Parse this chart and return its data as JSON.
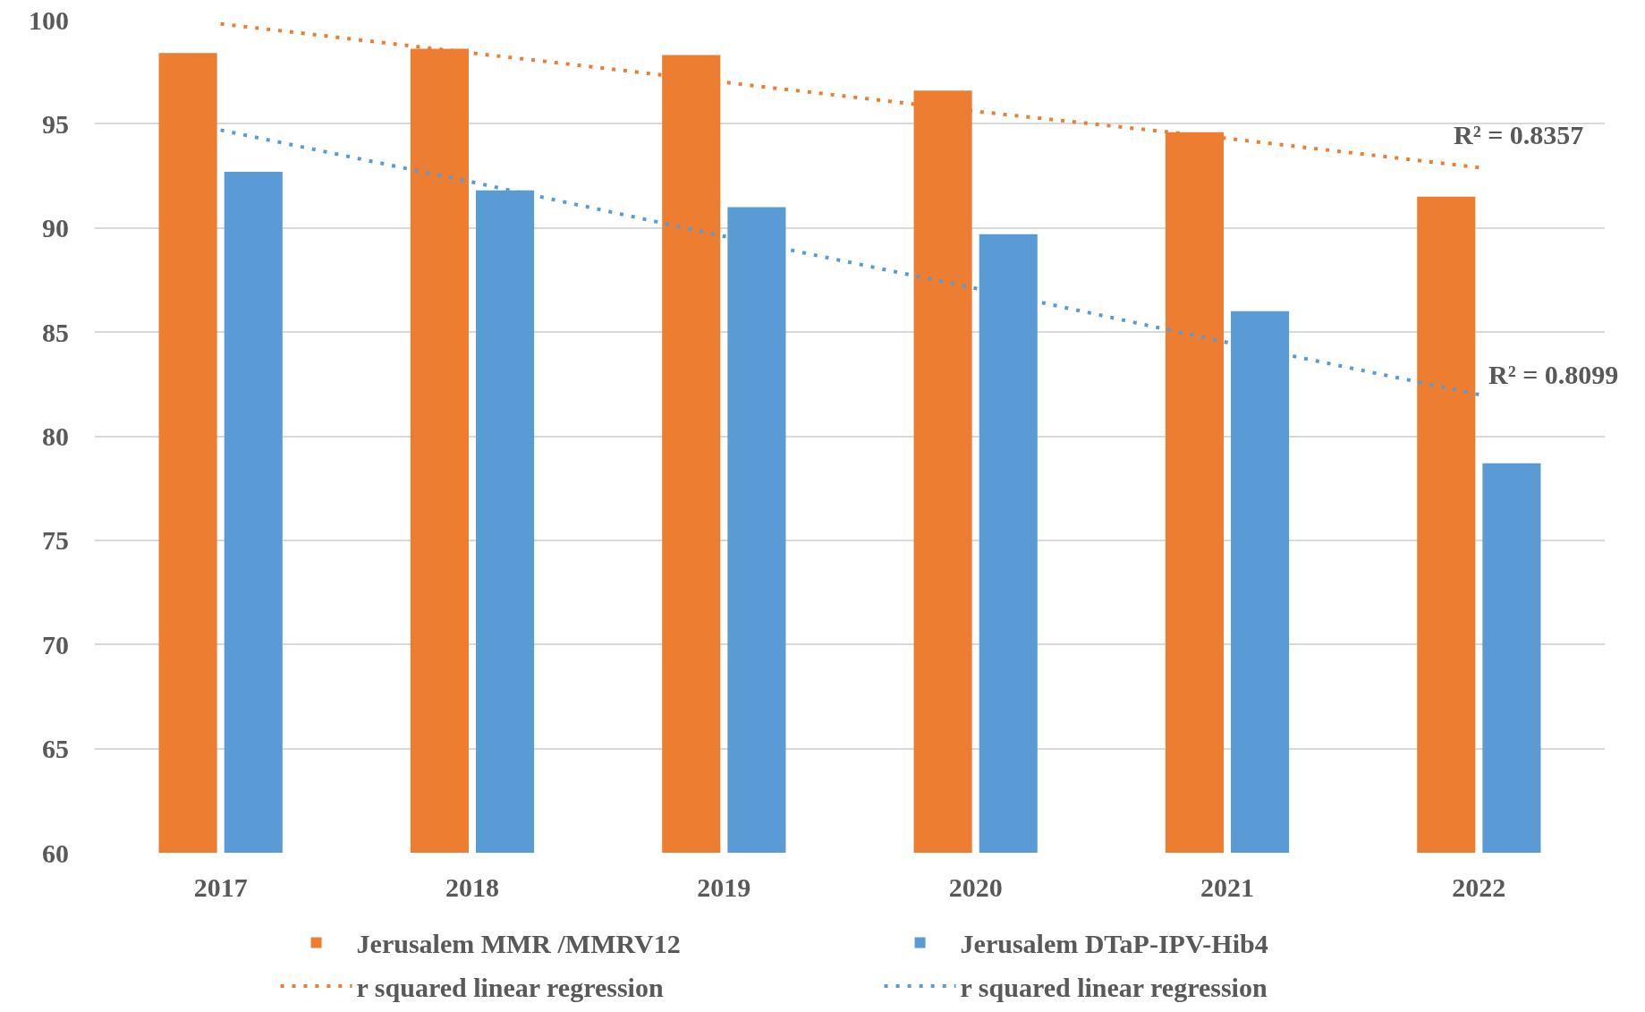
{
  "chart_data": {
    "type": "bar",
    "categories": [
      "2017",
      "2018",
      "2019",
      "2020",
      "2021",
      "2022"
    ],
    "series": [
      {
        "name": "Jerusalem MMR /MMRV12",
        "color": "#ed7d31",
        "values": [
          98.4,
          98.6,
          98.3,
          96.6,
          94.6,
          91.5
        ]
      },
      {
        "name": "Jerusalem DTaP-IPV-Hib4",
        "color": "#5b9bd5",
        "values": [
          92.7,
          91.8,
          91.0,
          89.7,
          86.0,
          78.7
        ]
      },
      {
        "name": "r squared linear regression",
        "type": "line",
        "color": "#ed7d31",
        "values": [
          99.8,
          98.4,
          97.0,
          95.6,
          94.3,
          92.9
        ],
        "line_style": "dotted",
        "marker": "none"
      },
      {
        "name": "r squared linear regression",
        "type": "line",
        "color": "#5b9bd5",
        "values": [
          94.7,
          92.2,
          89.6,
          87.1,
          84.5,
          82.0
        ],
        "line_style": "dotted",
        "marker": "none"
      }
    ],
    "ylim": [
      60,
      100
    ],
    "yticks": [
      60,
      65,
      70,
      75,
      80,
      85,
      90,
      95,
      100
    ],
    "grid": "y",
    "legend": "bottom",
    "annotations": [
      "R² = 0.8357",
      "R² = 0.8099"
    ]
  }
}
